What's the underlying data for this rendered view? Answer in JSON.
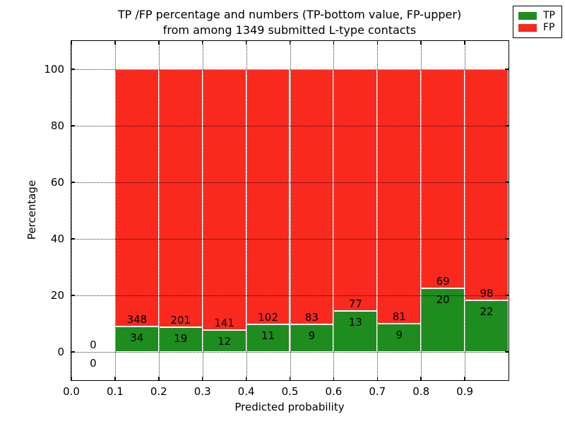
{
  "figure": {
    "title_line1": "TP /FP percentage and numbers (TP-bottom value, FP-upper)",
    "title_line2": "from among 1349 submitted L-type contacts",
    "xlabel": "Predicted probability",
    "ylabel": "Percentage"
  },
  "legend": {
    "position": "upper right",
    "items": [
      {
        "label": "TP",
        "color": "#1e8c1e"
      },
      {
        "label": "FP",
        "color": "#fa291e"
      }
    ]
  },
  "chart_data": {
    "type": "bar",
    "stacked": true,
    "title": "TP /FP percentage and numbers (TP-bottom value, FP-upper) from among 1349 submitted L-type contacts",
    "xlabel": "Predicted probability",
    "ylabel": "Percentage",
    "xlim": [
      0.0,
      1.0
    ],
    "ylim": [
      -10,
      110
    ],
    "xticks": [
      0.0,
      0.1,
      0.2,
      0.3,
      0.4,
      0.5,
      0.6,
      0.7,
      0.8,
      0.9
    ],
    "xtick_labels": [
      "0.0",
      "0.1",
      "0.2",
      "0.3",
      "0.4",
      "0.5",
      "0.6",
      "0.7",
      "0.8",
      "0.9"
    ],
    "yticks": [
      0,
      20,
      40,
      60,
      80,
      100
    ],
    "ytick_labels": [
      "0",
      "20",
      "40",
      "60",
      "80",
      "100"
    ],
    "grid": "dotted",
    "bar_edge_color": "#ffffff",
    "series": [
      {
        "name": "TP",
        "color": "#1e8c1e"
      },
      {
        "name": "FP",
        "color": "#fa291e"
      }
    ],
    "bins": [
      {
        "range": [
          0.0,
          0.1
        ],
        "tp_count": 0,
        "fp_count": 0,
        "tp_pct": 0.0,
        "fp_pct": 0.0
      },
      {
        "range": [
          0.1,
          0.2
        ],
        "tp_count": 34,
        "fp_count": 348,
        "tp_pct": 8.9,
        "fp_pct": 91.1
      },
      {
        "range": [
          0.2,
          0.3
        ],
        "tp_count": 19,
        "fp_count": 201,
        "tp_pct": 8.64,
        "fp_pct": 91.36
      },
      {
        "range": [
          0.3,
          0.4
        ],
        "tp_count": 12,
        "fp_count": 141,
        "tp_pct": 7.84,
        "fp_pct": 92.16
      },
      {
        "range": [
          0.4,
          0.5
        ],
        "tp_count": 11,
        "fp_count": 102,
        "tp_pct": 9.73,
        "fp_pct": 90.27
      },
      {
        "range": [
          0.5,
          0.6
        ],
        "tp_count": 9,
        "fp_count": 83,
        "tp_pct": 9.78,
        "fp_pct": 90.22
      },
      {
        "range": [
          0.6,
          0.7
        ],
        "tp_count": 13,
        "fp_count": 77,
        "tp_pct": 14.44,
        "fp_pct": 85.56
      },
      {
        "range": [
          0.7,
          0.8
        ],
        "tp_count": 9,
        "fp_count": 81,
        "tp_pct": 10.0,
        "fp_pct": 90.0
      },
      {
        "range": [
          0.8,
          0.9
        ],
        "tp_count": 20,
        "fp_count": 69,
        "tp_pct": 22.47,
        "fp_pct": 77.53
      },
      {
        "range": [
          0.9,
          1.0
        ],
        "tp_count": 22,
        "fp_count": 98,
        "tp_pct": 18.33,
        "fp_pct": 81.67
      }
    ]
  }
}
